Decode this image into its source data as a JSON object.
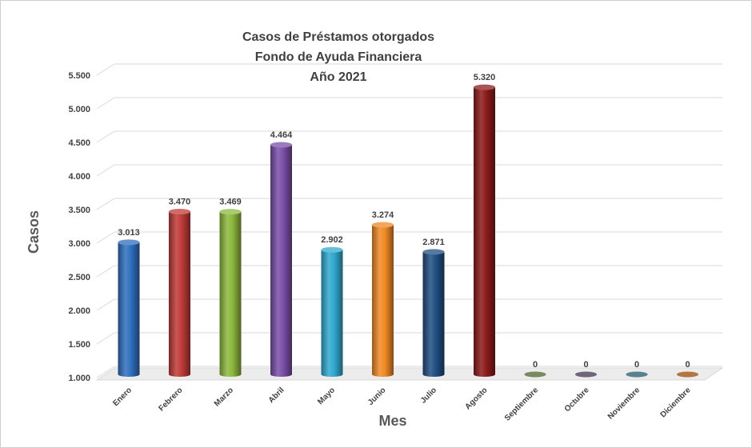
{
  "chart_data": {
    "type": "bar",
    "title": [
      "Casos de Préstamos otorgados",
      "Fondo de Ayuda Financiera",
      "Año 2021"
    ],
    "xlabel": "Mes",
    "ylabel": "Casos",
    "categories": [
      "Enero",
      "Febrero",
      "Marzo",
      "Abril",
      "Mayo",
      "Junio",
      "Julio",
      "Agosto",
      "Septiembre",
      "Octubre",
      "Noviembre",
      "Diciembre"
    ],
    "values": [
      3013,
      3470,
      3469,
      4464,
      2902,
      3274,
      2871,
      5320,
      0,
      0,
      0,
      0
    ],
    "value_labels": [
      "3.013",
      "3.470",
      "3.469",
      "4.464",
      "2.902",
      "3.274",
      "2.871",
      "5.320",
      "0",
      "0",
      "0",
      "0"
    ],
    "ylim": [
      1000,
      5500
    ],
    "yticks": [
      1000,
      1500,
      2000,
      2500,
      3000,
      3500,
      4000,
      4500,
      5000,
      5500
    ],
    "ytick_labels": [
      "1.000",
      "1.500",
      "2.000",
      "2.500",
      "3.000",
      "3.500",
      "4.000",
      "4.500",
      "5.000",
      "5.500"
    ],
    "grid": true,
    "legend": "none",
    "colors": [
      "#2e6fbf",
      "#c03a36",
      "#8cb83d",
      "#7a4ea8",
      "#2fa9cf",
      "#f08a24",
      "#1f4e82",
      "#8c1a1a",
      "#4f6228",
      "#3f3151",
      "#215868",
      "#974806"
    ]
  }
}
